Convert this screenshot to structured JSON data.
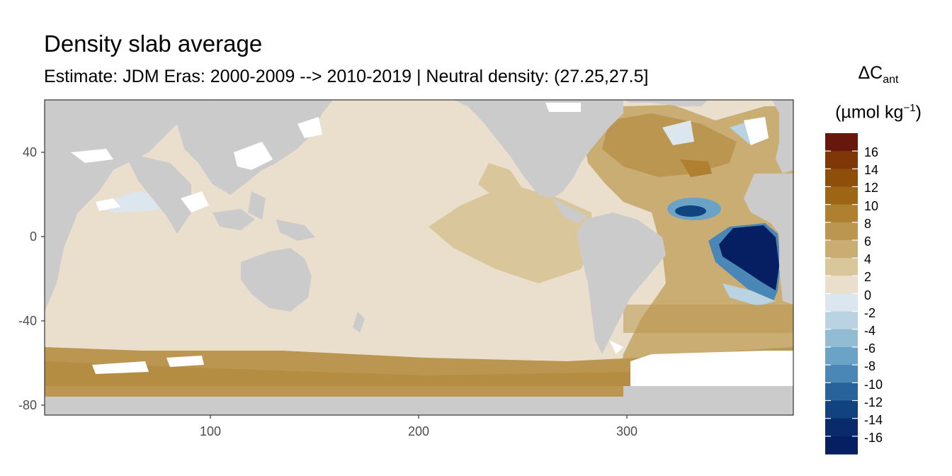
{
  "title": "Density slab average",
  "subtitle": "Estimate: JDM Eras: 2000-2009 --> 2010-2019 | Neutral density: (27.25,27.5]",
  "axes": {
    "x_ticks": [
      "100",
      "200",
      "300"
    ],
    "y_ticks": [
      "40",
      "0",
      "-40",
      "-80"
    ]
  },
  "legend": {
    "title_symbol": "ΔC",
    "title_subscript": "ant",
    "unit_open": "(µmol kg",
    "unit_sup": "−1",
    "unit_close": ")",
    "labels": [
      "16",
      "14",
      "12",
      "10",
      "8",
      "6",
      "4",
      "2",
      "0",
      "-2",
      "-4",
      "-6",
      "-8",
      "-10",
      "-12",
      "-14",
      "-16"
    ],
    "colors": [
      "#67170c",
      "#7f3708",
      "#8e4f0a",
      "#9d6514",
      "#ae8030",
      "#bb9650",
      "#caad72",
      "#dac69b",
      "#e9dfcc",
      "#dce6ee",
      "#bad3e3",
      "#92bbd4",
      "#6ba3c6",
      "#4a86b6",
      "#28639c",
      "#10437f",
      "#092a6b",
      "#061f62"
    ]
  },
  "colors": {
    "land": "#cbcbcb",
    "missing": "#ffffff",
    "panel_border": "#333333"
  }
}
